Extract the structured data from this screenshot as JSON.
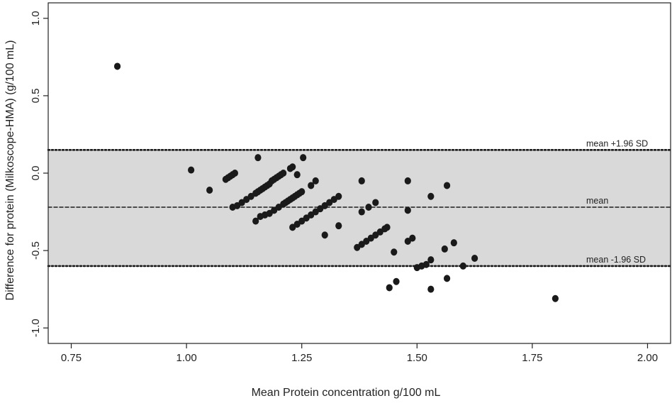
{
  "chart_data": {
    "type": "scatter",
    "title": "",
    "xlabel": "Mean Protein concentration g/100 mL",
    "ylabel": "Difference for protein (Milkoscope-HMA) (g/100 mL)",
    "xlim": [
      0.7,
      2.05
    ],
    "ylim": [
      -1.1,
      1.1
    ],
    "x_ticks": [
      0.75,
      1.0,
      1.25,
      1.5,
      1.75,
      2.0
    ],
    "x_tick_labels": [
      "0.75",
      "1.00",
      "1.25",
      "1.50",
      "1.75",
      "2.00"
    ],
    "y_ticks": [
      -1.0,
      -0.5,
      0.0,
      0.5,
      1.0
    ],
    "y_tick_labels": [
      "-1.0",
      "-0.5",
      "0.0",
      "0.5",
      "1.0"
    ],
    "grid": false,
    "band": {
      "lower": -0.6,
      "upper": 0.15,
      "color": "#d9d9d9"
    },
    "reference_lines": [
      {
        "label": "mean +1.96 SD",
        "y": 0.15,
        "style": "dotted"
      },
      {
        "label": "mean",
        "y": -0.22,
        "style": "dashed"
      },
      {
        "label": "mean -1.96 SD",
        "y": -0.6,
        "style": "dotted"
      }
    ],
    "point_color": "#1a1a1a",
    "points": [
      [
        0.85,
        0.69
      ],
      [
        1.01,
        0.02
      ],
      [
        1.05,
        -0.11
      ],
      [
        1.155,
        0.1
      ],
      [
        1.253,
        0.1
      ],
      [
        1.09,
        -0.03
      ],
      [
        1.095,
        -0.02
      ],
      [
        1.1,
        -0.01
      ],
      [
        1.105,
        0.0
      ],
      [
        1.085,
        -0.04
      ],
      [
        1.185,
        -0.05
      ],
      [
        1.19,
        -0.04
      ],
      [
        1.195,
        -0.03
      ],
      [
        1.2,
        -0.02
      ],
      [
        1.205,
        -0.01
      ],
      [
        1.21,
        0.0
      ],
      [
        1.225,
        0.03
      ],
      [
        1.23,
        0.04
      ],
      [
        1.24,
        -0.01
      ],
      [
        1.28,
        -0.05
      ],
      [
        1.27,
        -0.08
      ],
      [
        1.1,
        -0.22
      ],
      [
        1.11,
        -0.21
      ],
      [
        1.12,
        -0.19
      ],
      [
        1.13,
        -0.17
      ],
      [
        1.14,
        -0.15
      ],
      [
        1.15,
        -0.13
      ],
      [
        1.155,
        -0.12
      ],
      [
        1.16,
        -0.11
      ],
      [
        1.165,
        -0.1
      ],
      [
        1.17,
        -0.09
      ],
      [
        1.175,
        -0.08
      ],
      [
        1.18,
        -0.07
      ],
      [
        1.15,
        -0.31
      ],
      [
        1.16,
        -0.28
      ],
      [
        1.17,
        -0.27
      ],
      [
        1.18,
        -0.26
      ],
      [
        1.19,
        -0.24
      ],
      [
        1.2,
        -0.22
      ],
      [
        1.21,
        -0.2
      ],
      [
        1.215,
        -0.19
      ],
      [
        1.22,
        -0.18
      ],
      [
        1.225,
        -0.17
      ],
      [
        1.23,
        -0.16
      ],
      [
        1.235,
        -0.15
      ],
      [
        1.24,
        -0.14
      ],
      [
        1.245,
        -0.13
      ],
      [
        1.25,
        -0.12
      ],
      [
        1.23,
        -0.35
      ],
      [
        1.24,
        -0.33
      ],
      [
        1.25,
        -0.31
      ],
      [
        1.26,
        -0.29
      ],
      [
        1.27,
        -0.27
      ],
      [
        1.28,
        -0.25
      ],
      [
        1.29,
        -0.23
      ],
      [
        1.3,
        -0.21
      ],
      [
        1.31,
        -0.19
      ],
      [
        1.32,
        -0.17
      ],
      [
        1.33,
        -0.15
      ],
      [
        1.3,
        -0.4
      ],
      [
        1.33,
        -0.34
      ],
      [
        1.38,
        -0.05
      ],
      [
        1.38,
        -0.25
      ],
      [
        1.395,
        -0.22
      ],
      [
        1.41,
        -0.19
      ],
      [
        1.37,
        -0.48
      ],
      [
        1.38,
        -0.46
      ],
      [
        1.39,
        -0.44
      ],
      [
        1.4,
        -0.42
      ],
      [
        1.41,
        -0.4
      ],
      [
        1.42,
        -0.38
      ],
      [
        1.43,
        -0.36
      ],
      [
        1.435,
        -0.35
      ],
      [
        1.48,
        -0.05
      ],
      [
        1.48,
        -0.24
      ],
      [
        1.48,
        -0.44
      ],
      [
        1.49,
        -0.42
      ],
      [
        1.45,
        -0.51
      ],
      [
        1.5,
        -0.61
      ],
      [
        1.51,
        -0.6
      ],
      [
        1.52,
        -0.59
      ],
      [
        1.53,
        -0.56
      ],
      [
        1.53,
        -0.15
      ],
      [
        1.56,
        -0.49
      ],
      [
        1.565,
        -0.08
      ],
      [
        1.58,
        -0.45
      ],
      [
        1.6,
        -0.6
      ],
      [
        1.625,
        -0.55
      ],
      [
        1.44,
        -0.74
      ],
      [
        1.455,
        -0.7
      ],
      [
        1.53,
        -0.75
      ],
      [
        1.565,
        -0.68
      ],
      [
        1.8,
        -0.81
      ]
    ]
  }
}
